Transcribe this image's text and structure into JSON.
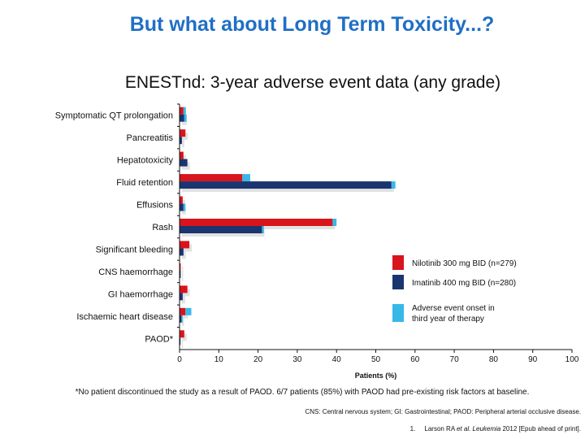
{
  "slide": {
    "title": "But what about Long Term Toxicity...?",
    "subtitle": "ENESTnd: 3-year adverse event data (any grade)",
    "footnote": "*No patient discontinued the study as a result of PAOD. 6/7 patients (85%) with PAOD had pre-existing risk factors at baseline.",
    "abbreviations": "CNS: Central nervous system; GI: Gastrointestinal; PAOD: Peripheral arterial occlusive disease.",
    "reference": {
      "number": "1.",
      "authors": "Larson RA",
      "etal": "et al.",
      "journal": "Leukemia",
      "rest": "2012 [Epub ahead of print]."
    }
  },
  "colors": {
    "nilotinib": "#d8141c",
    "imatinib": "#1a3570",
    "onset": "#38b8e8"
  },
  "chart_data": {
    "type": "bar",
    "orientation": "horizontal",
    "categories": [
      "Symptomatic QT prolongation",
      "Pancreatitis",
      "Hepatotoxicity",
      "Fluid retention",
      "Effusions",
      "Rash",
      "Significant bleeding",
      "CNS haemorrhage",
      "GI haemorrhage",
      "Ischaemic heart disease",
      "PAOD*"
    ],
    "series": [
      {
        "name": "Nilotinib 300 mg BID (n=279)",
        "color_key": "nilotinib",
        "values": [
          1.0,
          1.5,
          1.0,
          16,
          0.8,
          39,
          2.5,
          0.3,
          2.0,
          1.5,
          1.2
        ],
        "third_year_onset": [
          0.6,
          0,
          0,
          2,
          0,
          1,
          0,
          0,
          0,
          1.5,
          0
        ]
      },
      {
        "name": "Imatinib 400 mg BID (n=280)",
        "color_key": "imatinib",
        "values": [
          1.2,
          0.6,
          2.0,
          54,
          1.0,
          21,
          1.0,
          0.3,
          0.8,
          0.5,
          0
        ],
        "third_year_onset": [
          0.6,
          0,
          0,
          1,
          0.5,
          0.5,
          0,
          0,
          0,
          0.3,
          0
        ]
      }
    ],
    "legend": [
      "Nilotinib 300 mg BID (n=279)",
      "Imatinib 400 mg BID (n=280)",
      "Adverse event onset in third year of therapy"
    ],
    "legend_placement": "right",
    "xlabel": "Patients (%)",
    "xlim": [
      0,
      100
    ],
    "xticks": [
      0,
      10,
      20,
      30,
      40,
      50,
      60,
      70,
      80,
      90,
      100
    ],
    "grid": false
  }
}
